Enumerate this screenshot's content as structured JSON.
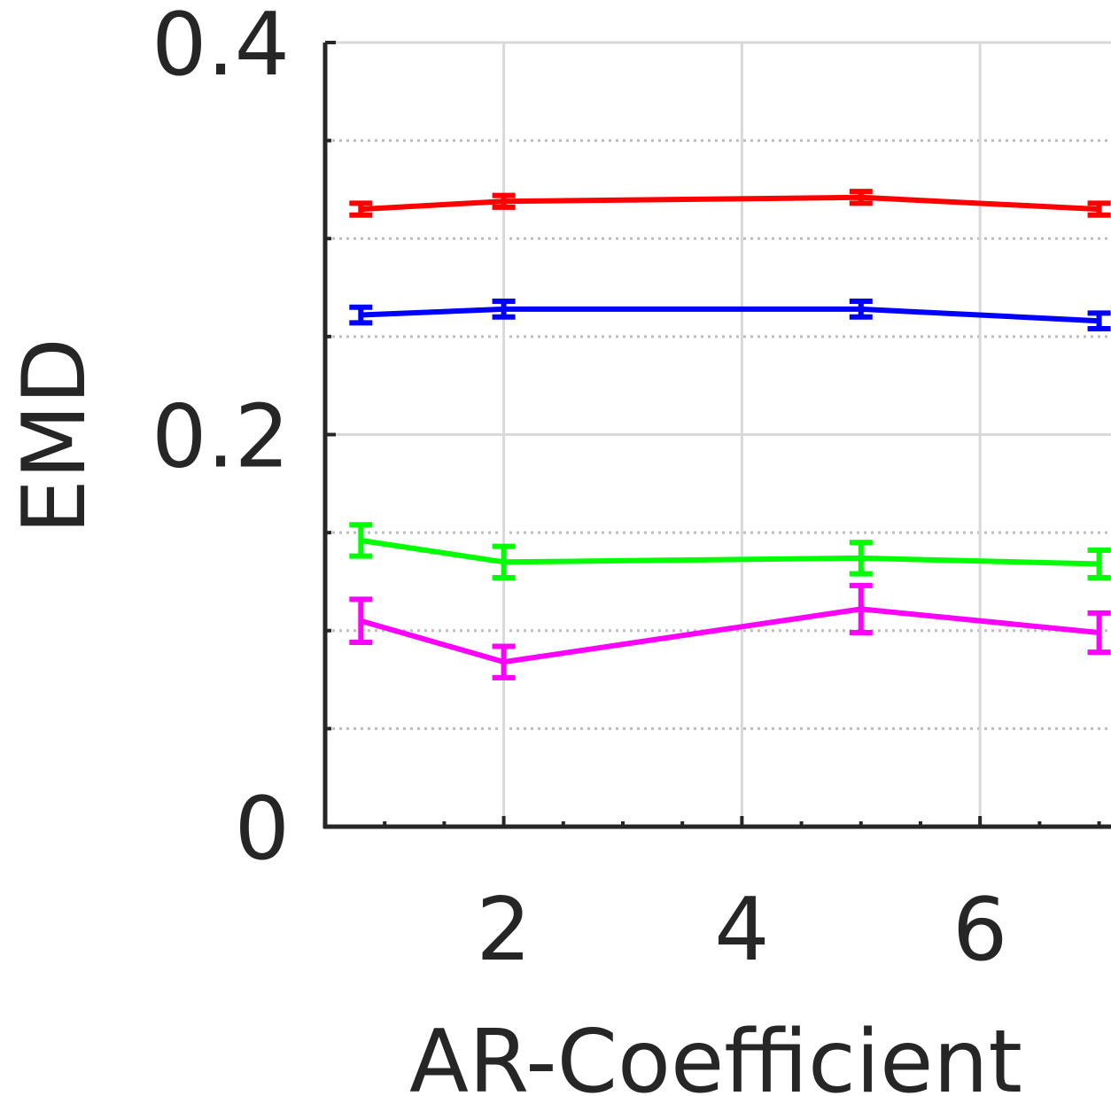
{
  "chart_data": {
    "type": "line",
    "xlabel": "AR-Coefficient",
    "ylabel": "EMD",
    "xlim": [
      0.5,
      7.1
    ],
    "ylim": [
      0,
      0.4
    ],
    "xticks": [
      2,
      4,
      6
    ],
    "xtick_labels": [
      "2",
      "4",
      "6"
    ],
    "yticks": [
      0,
      0.2,
      0.4
    ],
    "ytick_labels": [
      "0",
      "0.2",
      "0.4"
    ],
    "y_minor_ticks": [
      0.05,
      0.1,
      0.15,
      0.25,
      0.3,
      0.35
    ],
    "grid": true,
    "minor_grid": true,
    "legend": "none",
    "x": [
      0.8,
      2,
      5,
      7
    ],
    "series": [
      {
        "color": "#ff0000",
        "values": [
          0.315,
          0.319,
          0.321,
          0.315
        ],
        "errors": [
          0.003,
          0.003,
          0.003,
          0.003
        ]
      },
      {
        "color": "#0000ff",
        "values": [
          0.261,
          0.264,
          0.264,
          0.258
        ],
        "errors": [
          0.004,
          0.004,
          0.004,
          0.004
        ]
      },
      {
        "color": "#00ff00",
        "values": [
          0.146,
          0.135,
          0.137,
          0.134
        ],
        "errors": [
          0.008,
          0.008,
          0.008,
          0.007
        ]
      },
      {
        "color": "#ff00ff",
        "values": [
          0.105,
          0.084,
          0.111,
          0.099
        ],
        "errors": [
          0.011,
          0.008,
          0.012,
          0.01
        ]
      }
    ]
  }
}
